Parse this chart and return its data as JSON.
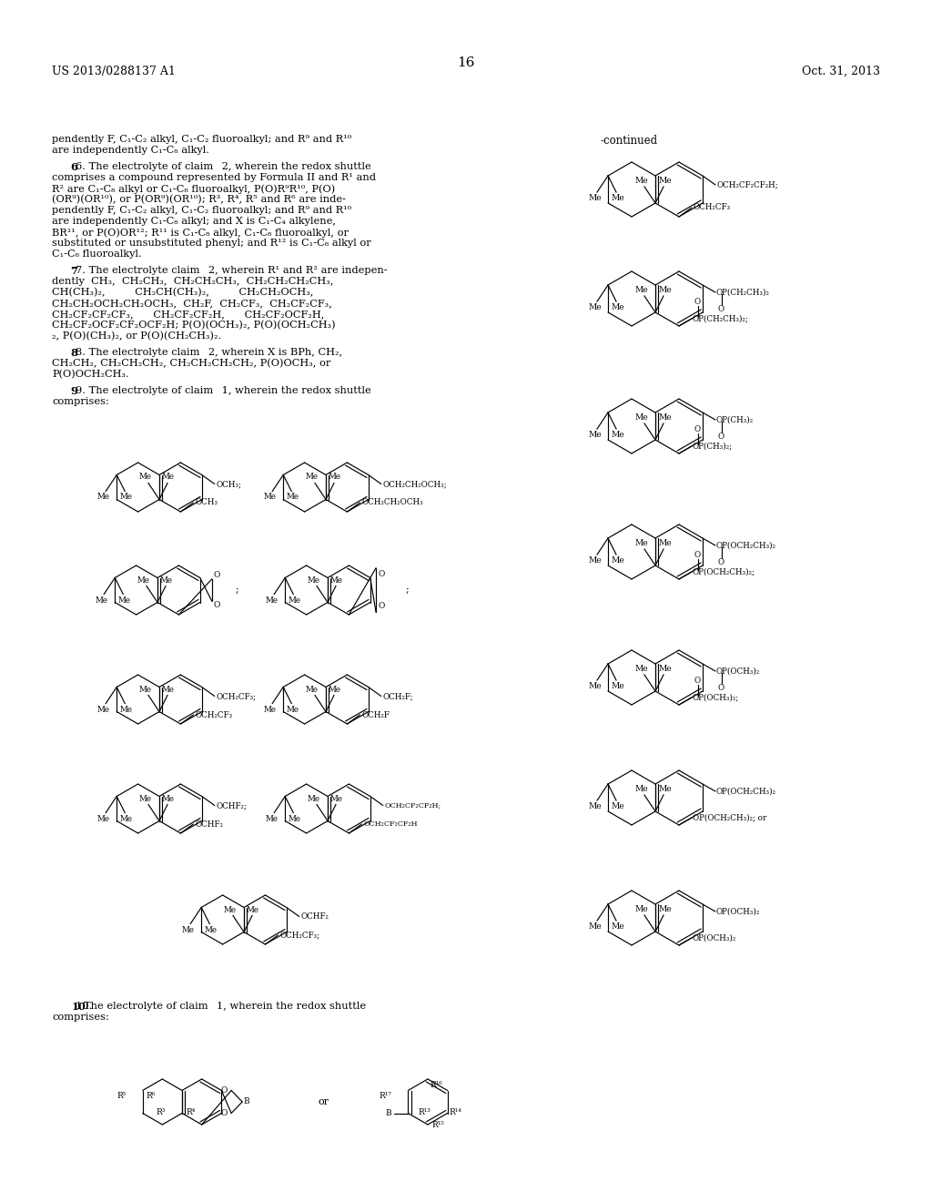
{
  "page_number": "16",
  "patent_number": "US 2013/0288137 A1",
  "patent_date": "Oct. 31, 2013",
  "background_color": "#ffffff",
  "figsize": [
    10.24,
    13.2
  ],
  "dpi": 100
}
